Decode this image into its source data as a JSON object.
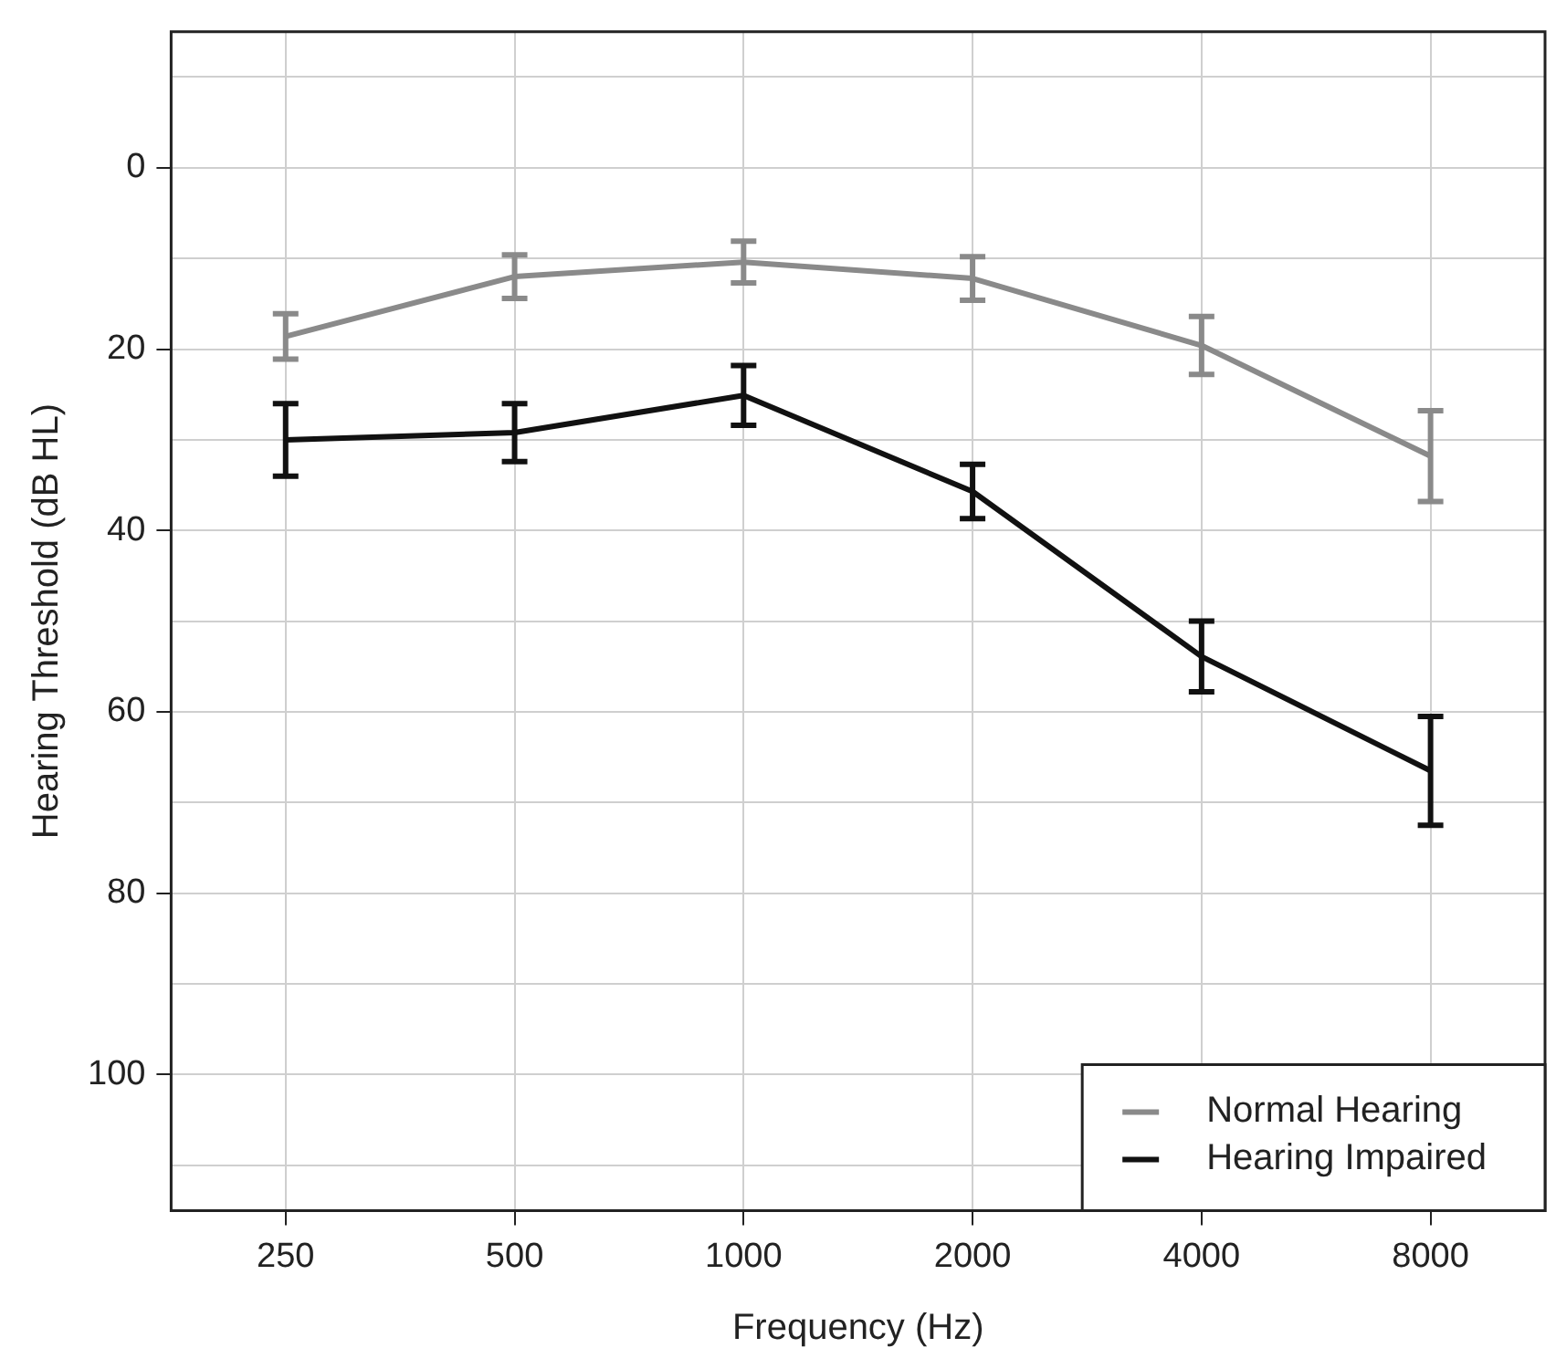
{
  "chart_data": {
    "type": "line",
    "xlabel": "Frequency (Hz)",
    "ylabel": "Hearing Threshold (dB HL)",
    "categories": [
      "250",
      "500",
      "1000",
      "2000",
      "4000",
      "8000"
    ],
    "series": [
      {
        "name": "Normal Hearing",
        "color": "#8a8a8a",
        "values": [
          18.6,
          12,
          10.4,
          12.2,
          19.6,
          31.8
        ],
        "errors": [
          2.5,
          2.4,
          2.3,
          2.4,
          3.2,
          5
        ]
      },
      {
        "name": "Hearing Impaired",
        "color": "#111111",
        "values": [
          30,
          29.2,
          25.1,
          35.7,
          53.9,
          66.5
        ],
        "errors": [
          4,
          3.2,
          3.3,
          3,
          3.9,
          6
        ]
      }
    ],
    "ylim": [
      115,
      -15
    ],
    "yticks": [
      {
        "value": -10,
        "label": null
      },
      0,
      {
        "value": 10,
        "label": null
      },
      20,
      {
        "value": 30,
        "label": null
      },
      40,
      {
        "value": 50,
        "label": null
      },
      60,
      {
        "value": 70,
        "label": null
      },
      80,
      {
        "value": 90,
        "label": null
      },
      100,
      {
        "value": 110,
        "label": null
      }
    ],
    "grid": true,
    "legend": "bottom right",
    "marker": "none",
    "line_style": "solid"
  }
}
